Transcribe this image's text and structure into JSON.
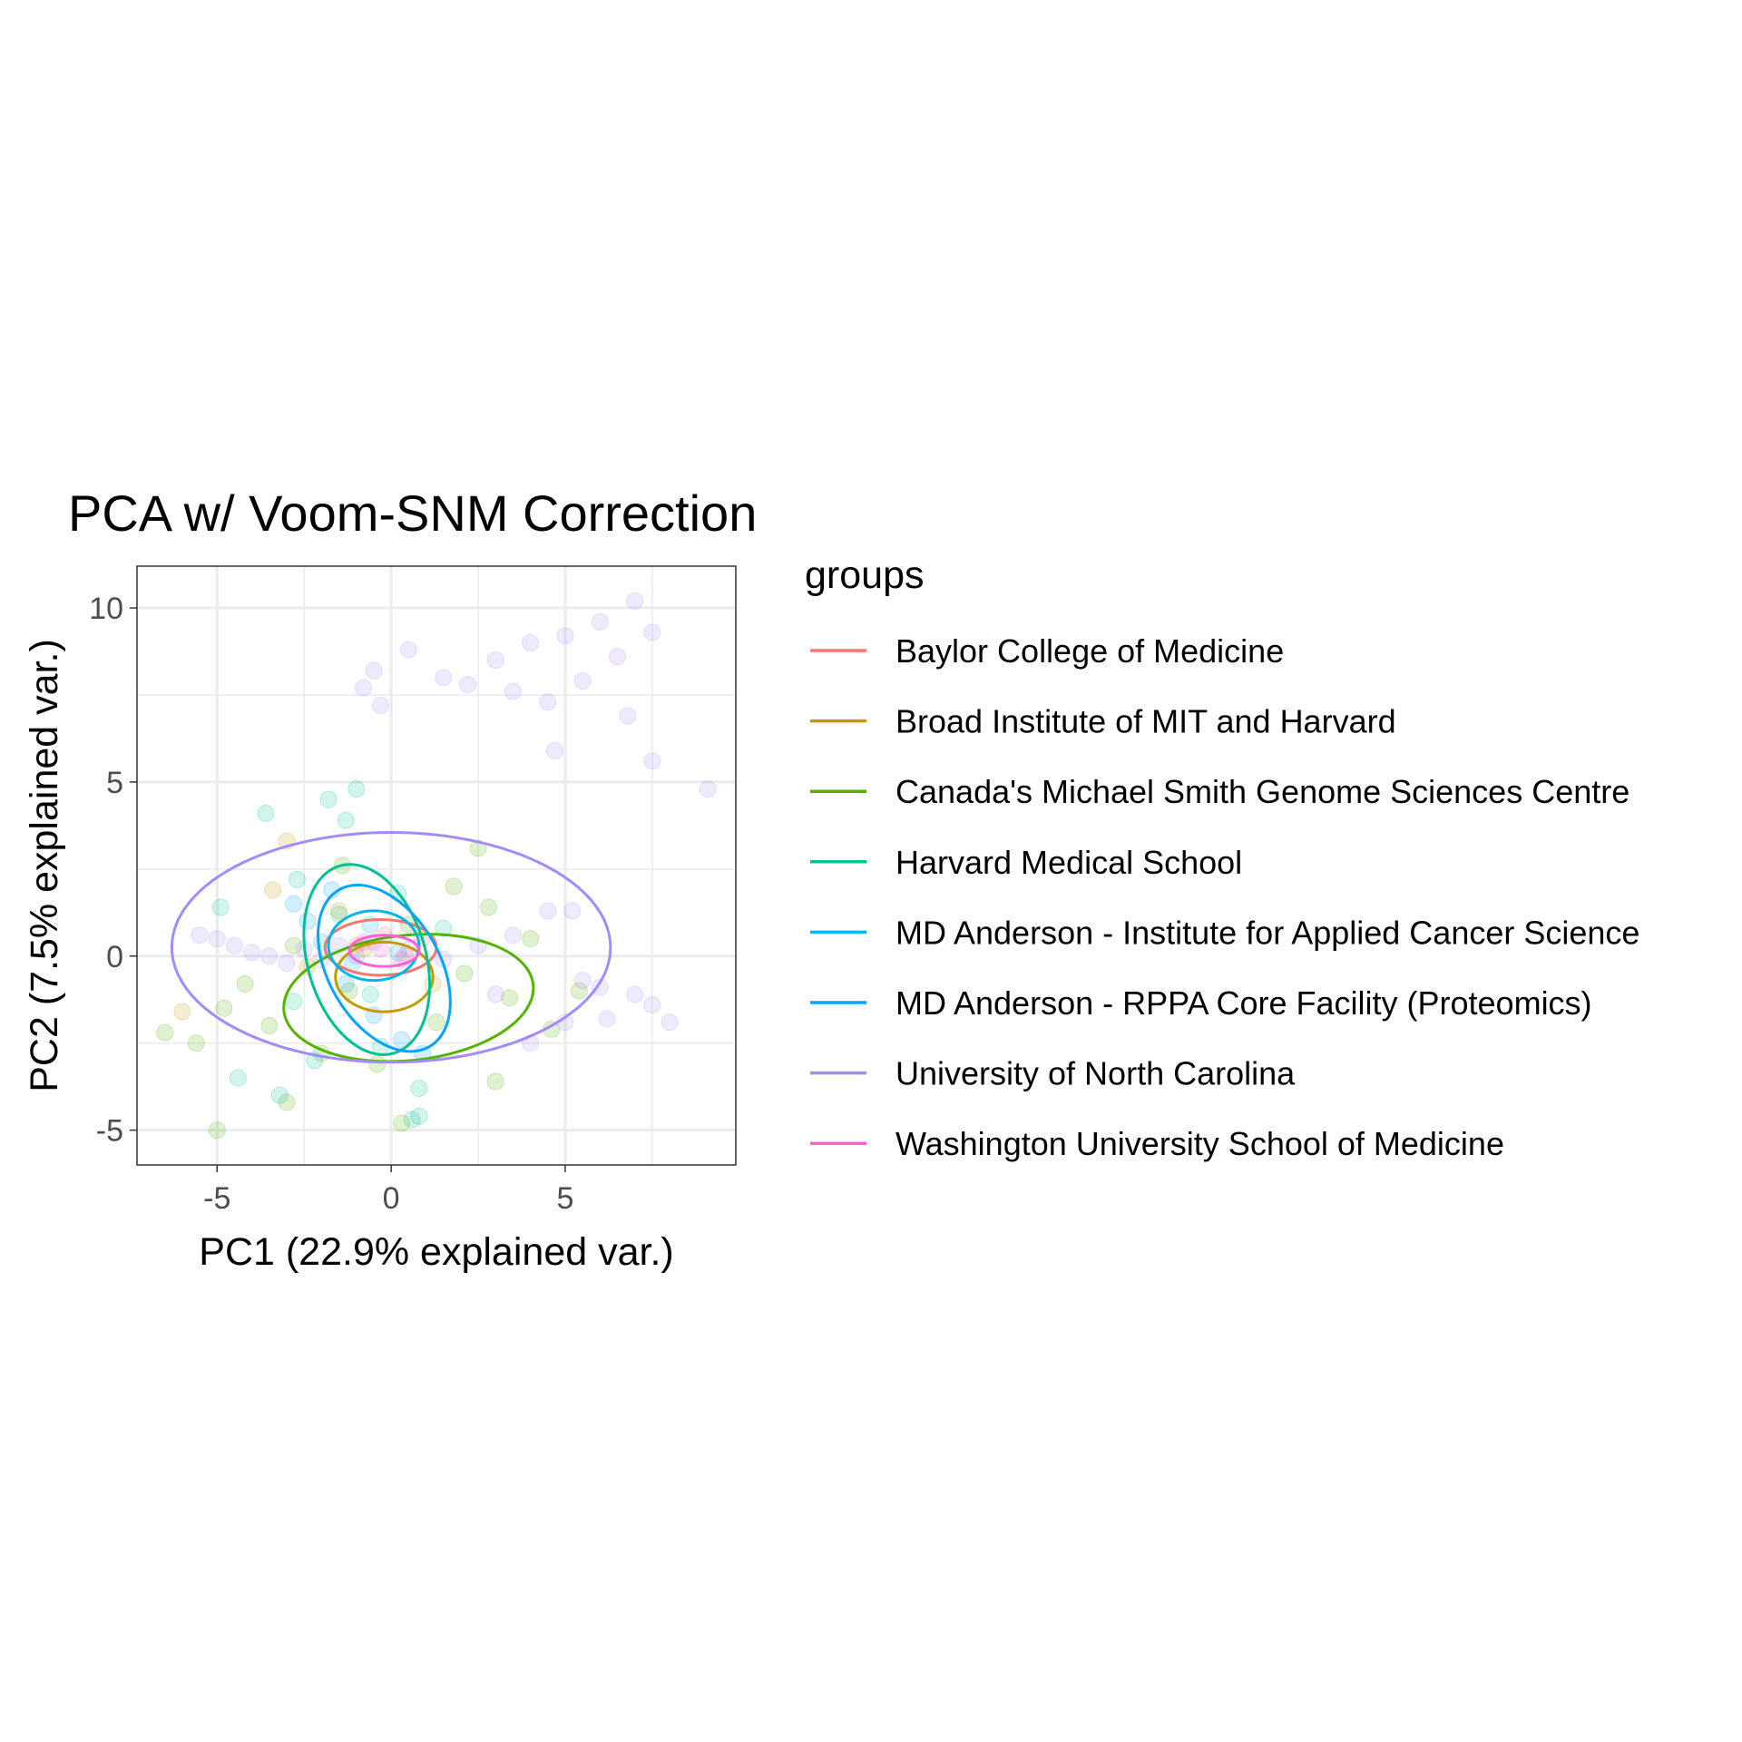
{
  "chart_data": {
    "type": "scatter",
    "title": "PCA w/ Voom-SNM Correction",
    "xlabel": "PC1 (22.9% explained var.)",
    "ylabel": "PC2 (7.5% explained var.)",
    "xlim": [
      -7.3,
      9.9
    ],
    "ylim": [
      -6.0,
      11.2
    ],
    "xticks": [
      -5,
      0,
      5
    ],
    "xtick_labels": [
      "-5",
      "0",
      "5"
    ],
    "yticks": [
      -5,
      0,
      5,
      10
    ],
    "ytick_labels": [
      "-5",
      "0",
      "5",
      "10"
    ],
    "grid": true,
    "legend": {
      "title": "groups",
      "placement": "right"
    },
    "series": [
      {
        "name": "Baylor College of Medicine",
        "color": "#F8766D",
        "ellipse": {
          "cx": -0.3,
          "cy": 0.25,
          "rx": 1.6,
          "ry": 0.8,
          "angle": 0
        },
        "points": [
          [
            -0.2,
            0.6
          ],
          [
            0.4,
            0.0
          ],
          [
            -1.0,
            0.3
          ],
          [
            0.9,
            0.5
          ]
        ]
      },
      {
        "name": "Broad Institute of MIT and Harvard",
        "color": "#C49A00",
        "ellipse": {
          "cx": -0.2,
          "cy": -0.6,
          "rx": 1.4,
          "ry": 1.0,
          "angle": 0
        },
        "points": [
          [
            -3.4,
            1.9
          ],
          [
            -3.0,
            3.3
          ],
          [
            -1.5,
            1.3
          ],
          [
            -0.8,
            0.2
          ],
          [
            -2.4,
            -0.3
          ],
          [
            -6.0,
            -1.6
          ],
          [
            1.2,
            -0.8
          ]
        ]
      },
      {
        "name": "Canada's Michael Smith Genome Sciences Centre",
        "color": "#53B400",
        "ellipse": {
          "cx": 0.5,
          "cy": -1.2,
          "rx": 3.6,
          "ry": 1.8,
          "angle": -6
        },
        "points": [
          [
            -6.5,
            -2.2
          ],
          [
            -5.6,
            -2.5
          ],
          [
            -4.8,
            -1.5
          ],
          [
            -4.2,
            -0.8
          ],
          [
            -3.5,
            -2.0
          ],
          [
            -2.8,
            0.3
          ],
          [
            -2.0,
            -2.8
          ],
          [
            -1.2,
            -1.0
          ],
          [
            -0.4,
            -3.1
          ],
          [
            0.5,
            0.9
          ],
          [
            1.3,
            -1.9
          ],
          [
            2.1,
            -0.5
          ],
          [
            2.8,
            1.4
          ],
          [
            3.4,
            -1.2
          ],
          [
            4.0,
            0.5
          ],
          [
            4.6,
            -2.1
          ],
          [
            2.5,
            3.1
          ],
          [
            1.8,
            2.0
          ],
          [
            0.3,
            -4.8
          ],
          [
            -1.4,
            2.6
          ],
          [
            3.0,
            -3.6
          ],
          [
            5.4,
            -1.0
          ],
          [
            -5.0,
            -5.0
          ],
          [
            -3.0,
            -4.2
          ]
        ]
      },
      {
        "name": "Harvard Medical School",
        "color": "#00C094",
        "ellipse": {
          "cx": -0.7,
          "cy": -0.1,
          "rx": 1.7,
          "ry": 2.8,
          "angle": -16
        },
        "points": [
          [
            -1.8,
            4.5
          ],
          [
            -1.3,
            3.9
          ],
          [
            -2.7,
            2.2
          ],
          [
            -3.6,
            4.1
          ],
          [
            -4.4,
            -3.5
          ],
          [
            -2.2,
            -3.0
          ],
          [
            -0.3,
            -2.6
          ],
          [
            0.8,
            -3.8
          ],
          [
            0.8,
            -4.6
          ],
          [
            0.6,
            -4.7
          ],
          [
            -1.5,
            1.2
          ],
          [
            -0.6,
            -1.1
          ],
          [
            0.2,
            1.8
          ],
          [
            -2.8,
            -1.3
          ],
          [
            1.5,
            0.8
          ],
          [
            -1.0,
            4.8
          ],
          [
            -4.9,
            1.4
          ],
          [
            -3.2,
            -4.0
          ]
        ]
      },
      {
        "name": "MD Anderson - Institute for Applied Cancer Science",
        "color": "#00B6EB",
        "ellipse": {
          "cx": -0.5,
          "cy": 0.3,
          "rx": 1.3,
          "ry": 1.0,
          "angle": 0
        },
        "points": [
          [
            -0.6,
            0.9
          ],
          [
            0.2,
            0.1
          ],
          [
            -1.1,
            -0.2
          ]
        ]
      },
      {
        "name": "MD Anderson - RPPA Core Facility (Proteomics)",
        "color": "#06A4FF",
        "ellipse": {
          "cx": -0.2,
          "cy": -0.35,
          "rx": 1.6,
          "ry": 2.6,
          "angle": -30
        },
        "points": [
          [
            -2.8,
            1.5
          ],
          [
            -2.0,
            0.4
          ],
          [
            -1.3,
            -0.8
          ],
          [
            -0.5,
            -1.7
          ],
          [
            0.3,
            -2.4
          ],
          [
            -2.4,
            1.0
          ],
          [
            0.9,
            -2.8
          ],
          [
            -1.7,
            1.9
          ]
        ]
      },
      {
        "name": "University of North Carolina",
        "color": "#A58AFF",
        "ellipse": {
          "cx": 0.0,
          "cy": 0.25,
          "rx": 6.3,
          "ry": 3.3,
          "angle": 0
        },
        "points": [
          [
            -5.5,
            0.6
          ],
          [
            -5.0,
            0.5
          ],
          [
            -4.5,
            0.3
          ],
          [
            -4.0,
            0.1
          ],
          [
            -3.5,
            0.0
          ],
          [
            -3.0,
            -0.2
          ],
          [
            -2.5,
            0.2
          ],
          [
            -2.0,
            -0.1
          ],
          [
            -1.5,
            0.3
          ],
          [
            -1.0,
            0.0
          ],
          [
            -0.5,
            0.4
          ],
          [
            0.5,
            0.2
          ],
          [
            1.5,
            -0.1
          ],
          [
            2.5,
            0.3
          ],
          [
            3.5,
            0.6
          ],
          [
            4.5,
            1.3
          ],
          [
            5.2,
            1.3
          ],
          [
            5.5,
            -0.7
          ],
          [
            6.0,
            -0.9
          ],
          [
            7.0,
            -1.1
          ],
          [
            7.5,
            -1.4
          ],
          [
            8.0,
            -1.9
          ],
          [
            6.2,
            -1.8
          ],
          [
            5.0,
            -1.9
          ],
          [
            4.0,
            -2.5
          ],
          [
            3.0,
            -1.1
          ],
          [
            -0.5,
            8.2
          ],
          [
            0.5,
            8.8
          ],
          [
            1.5,
            8.0
          ],
          [
            2.2,
            7.8
          ],
          [
            3.0,
            8.5
          ],
          [
            4.0,
            9.0
          ],
          [
            5.0,
            9.2
          ],
          [
            6.0,
            9.6
          ],
          [
            7.0,
            10.2
          ],
          [
            7.5,
            9.3
          ],
          [
            6.5,
            8.6
          ],
          [
            5.5,
            7.9
          ],
          [
            4.5,
            7.3
          ],
          [
            3.5,
            7.6
          ],
          [
            -0.8,
            7.7
          ],
          [
            7.5,
            5.6
          ],
          [
            9.1,
            4.8
          ],
          [
            4.7,
            5.9
          ],
          [
            -0.3,
            7.2
          ],
          [
            6.8,
            6.9
          ]
        ]
      },
      {
        "name": "Washington University School of Medicine",
        "color": "#FB61D7",
        "ellipse": {
          "cx": -0.2,
          "cy": 0.15,
          "rx": 1.0,
          "ry": 0.45,
          "angle": 0
        },
        "points": [
          [
            -0.3,
            0.2
          ],
          [
            0.3,
            -0.1
          ],
          [
            -0.8,
            0.4
          ]
        ]
      }
    ]
  }
}
